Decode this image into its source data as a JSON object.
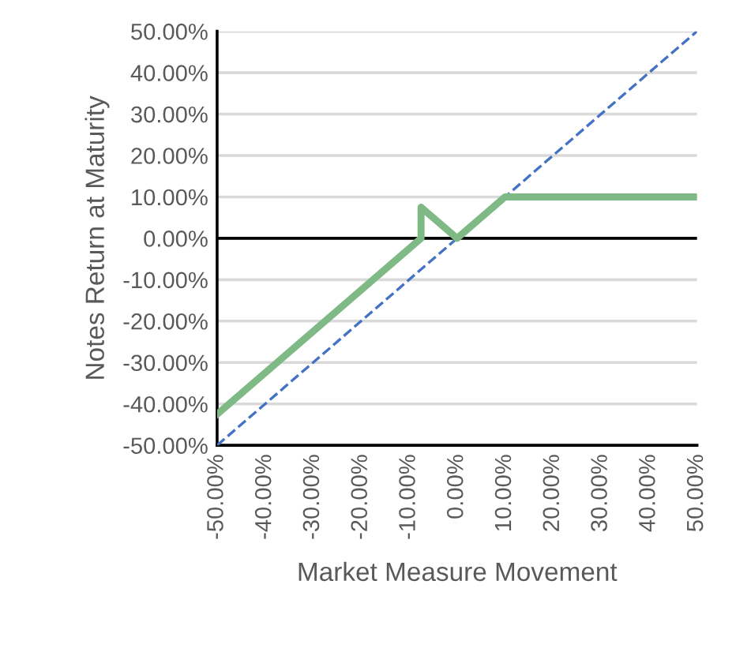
{
  "chart_data": {
    "type": "line",
    "xlabel": "Market Measure Movement",
    "ylabel": "Notes Return at Maturity",
    "series": [
      {
        "color": "#4472c4",
        "line_style": "dashed",
        "x": [
          -50,
          50
        ],
        "values": [
          -50,
          50
        ]
      },
      {
        "color": "#7fb985",
        "line_style": "solid",
        "x": [
          -50,
          -7.5,
          -7.5,
          0,
          10,
          50
        ],
        "values": [
          -42.5,
          0,
          7.5,
          0,
          10,
          10
        ]
      }
    ],
    "xlim": [
      -50,
      50
    ],
    "ylim": [
      -50,
      50
    ],
    "xticks": [
      {
        "value": -50,
        "label": "-50.00%"
      },
      {
        "value": -40,
        "label": "-40.00%"
      },
      {
        "value": -30,
        "label": "-30.00%"
      },
      {
        "value": -20,
        "label": "-20.00%"
      },
      {
        "value": -10,
        "label": "-10.00%"
      },
      {
        "value": 0,
        "label": "0.00%"
      },
      {
        "value": 10,
        "label": "10.00%"
      },
      {
        "value": 20,
        "label": "20.00%"
      },
      {
        "value": 30,
        "label": "30.00%"
      },
      {
        "value": 40,
        "label": "40.00%"
      },
      {
        "value": 50,
        "label": "50.00%"
      }
    ],
    "yticks": [
      {
        "value": -50,
        "label": "-50.00%"
      },
      {
        "value": -40,
        "label": "-40.00%"
      },
      {
        "value": -30,
        "label": "-30.00%"
      },
      {
        "value": -20,
        "label": "-20.00%"
      },
      {
        "value": -10,
        "label": "-10.00%"
      },
      {
        "value": 0,
        "label": "0.00%"
      },
      {
        "value": 10,
        "label": "10.00%"
      },
      {
        "value": 20,
        "label": "20.00%"
      },
      {
        "value": 30,
        "label": "30.00%"
      },
      {
        "value": 40,
        "label": "40.00%"
      },
      {
        "value": 50,
        "label": "50.00%"
      }
    ],
    "ref_lines": [
      {
        "axis": "y",
        "value": 0,
        "color": "#000000"
      }
    ],
    "grid": "y",
    "legend": false,
    "marker": "none"
  }
}
